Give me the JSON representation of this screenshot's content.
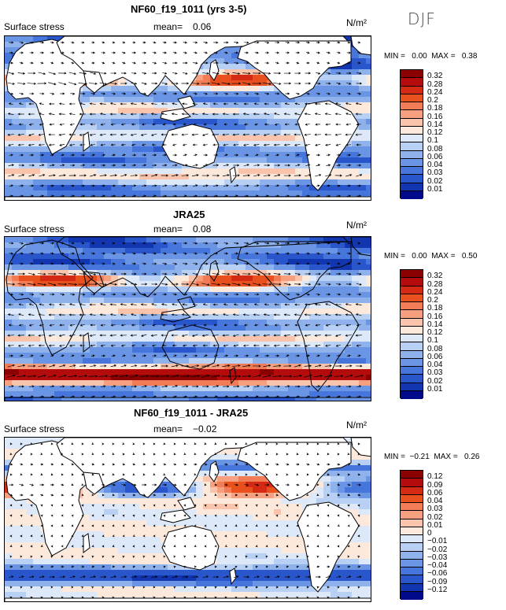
{
  "season": "DJF",
  "panels": [
    {
      "title": "NF60_f19_1011 (yrs 3-5)",
      "variable": "Surface stress",
      "mean_label": "mean=",
      "mean_value": "0.06",
      "units": "N/m²",
      "min_max": "MIN =   0.00  MAX =   0.38",
      "colorbar_labels": [
        "0.32",
        "0.28",
        "0.24",
        "0.2",
        "0.18",
        "0.16",
        "0.14",
        "0.12",
        "0.1",
        "0.08",
        "0.06",
        "0.04",
        "0.03",
        "0.02",
        "0.01"
      ],
      "colors": [
        "#8b0000",
        "#b40c0c",
        "#d42a14",
        "#e8501e",
        "#f27c55",
        "#f6a080",
        "#fac4ac",
        "#fde8dc",
        "#dde8f8",
        "#b8d0f4",
        "#8fb2ec",
        "#6a94e4",
        "#4676dc",
        "#2a56cc",
        "#1236b0",
        "#000a8a"
      ]
    },
    {
      "title": "JRA25",
      "variable": "Surface stress",
      "mean_label": "mean=",
      "mean_value": "0.08",
      "units": "N/m²",
      "min_max": "MIN =   0.00  MAX =   0.50",
      "colorbar_labels": [
        "0.32",
        "0.28",
        "0.24",
        "0.2",
        "0.18",
        "0.16",
        "0.14",
        "0.12",
        "0.1",
        "0.08",
        "0.06",
        "0.04",
        "0.03",
        "0.02",
        "0.01"
      ],
      "colors": [
        "#8b0000",
        "#b40c0c",
        "#d42a14",
        "#e8501e",
        "#f27c55",
        "#f6a080",
        "#fac4ac",
        "#fde8dc",
        "#dde8f8",
        "#b8d0f4",
        "#8fb2ec",
        "#6a94e4",
        "#4676dc",
        "#2a56cc",
        "#1236b0",
        "#000a8a"
      ]
    },
    {
      "title": "NF60_f19_1011 - JRA25",
      "variable": "Surface stress",
      "mean_label": "mean=",
      "mean_value": "−0.02",
      "units": "N/m²",
      "min_max": "MIN =  −0.21  MAX =   0.26",
      "colorbar_labels": [
        "0.12",
        "0.09",
        "0.06",
        "0.04",
        "0.03",
        "0.02",
        "0.01",
        "0",
        "−0.01",
        "−0.02",
        "−0.03",
        "−0.04",
        "−0.06",
        "−0.09",
        "−0.12"
      ],
      "colors": [
        "#8b0000",
        "#b40c0c",
        "#d42a14",
        "#e8501e",
        "#f27c55",
        "#f6a080",
        "#fac4ac",
        "#fde8dc",
        "#dde8f8",
        "#b8d0f4",
        "#8fb2ec",
        "#6a94e4",
        "#4676dc",
        "#2a56cc",
        "#1236b0",
        "#000a8a"
      ]
    }
  ]
}
